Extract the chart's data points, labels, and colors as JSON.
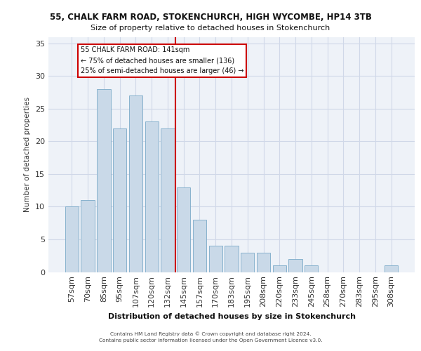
{
  "title_line1": "55, CHALK FARM ROAD, STOKENCHURCH, HIGH WYCOMBE, HP14 3TB",
  "title_line2": "Size of property relative to detached houses in Stokenchurch",
  "xlabel": "Distribution of detached houses by size in Stokenchurch",
  "ylabel": "Number of detached properties",
  "bar_labels": [
    "57sqm",
    "70sqm",
    "85sqm",
    "95sqm",
    "107sqm",
    "120sqm",
    "132sqm",
    "145sqm",
    "157sqm",
    "170sqm",
    "183sqm",
    "195sqm",
    "208sqm",
    "220sqm",
    "233sqm",
    "245sqm",
    "258sqm",
    "270sqm",
    "283sqm",
    "295sqm",
    "308sqm"
  ],
  "bar_heights": [
    10,
    11,
    28,
    22,
    27,
    23,
    22,
    13,
    8,
    4,
    4,
    3,
    3,
    1,
    2,
    1,
    0,
    0,
    0,
    0,
    1
  ],
  "bar_color": "#c9d9e8",
  "bar_edge_color": "#7baac8",
  "grid_color": "#d0d8e8",
  "bg_color": "#eef2f8",
  "annotation_text": "55 CHALK FARM ROAD: 141sqm\n← 75% of detached houses are smaller (136)\n25% of semi-detached houses are larger (46) →",
  "annotation_box_color": "#ffffff",
  "annotation_box_edge": "#cc0000",
  "red_line_color": "#cc0000",
  "ylim": [
    0,
    36
  ],
  "yticks": [
    0,
    5,
    10,
    15,
    20,
    25,
    30,
    35
  ],
  "footer_line1": "Contains HM Land Registry data © Crown copyright and database right 2024.",
  "footer_line2": "Contains public sector information licensed under the Open Government Licence v3.0."
}
